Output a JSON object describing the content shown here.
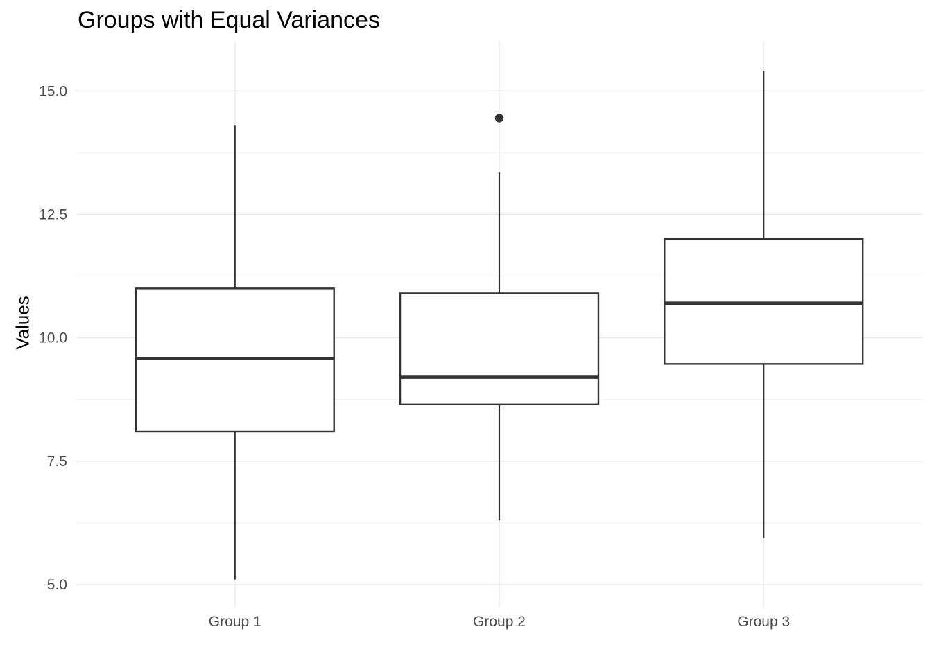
{
  "chart_data": {
    "type": "boxplot",
    "title": "Groups with Equal Variances",
    "xlabel": "",
    "ylabel": "Values",
    "legend": "none",
    "grid": "horizontal major+minor, vertical line at each category",
    "background": "#ffffff",
    "categories": [
      "Group 1",
      "Group 2",
      "Group 3"
    ],
    "series": [
      {
        "name": "Group 1",
        "whisker_low": 5.1,
        "q1": 8.1,
        "median": 9.58,
        "q3": 11.0,
        "whisker_high": 14.3,
        "outliers": []
      },
      {
        "name": "Group 2",
        "whisker_low": 6.3,
        "q1": 8.65,
        "median": 9.2,
        "q3": 10.9,
        "whisker_high": 13.35,
        "outliers": [
          14.45
        ]
      },
      {
        "name": "Group 3",
        "whisker_low": 5.95,
        "q1": 9.47,
        "median": 10.7,
        "q3": 12.0,
        "whisker_high": 15.4,
        "outliers": []
      }
    ],
    "y_ticks": [
      {
        "value": 5.0,
        "label": "5.0"
      },
      {
        "value": 7.5,
        "label": "7.5"
      },
      {
        "value": 10.0,
        "label": "10.0"
      },
      {
        "value": 12.5,
        "label": "12.5"
      },
      {
        "value": 15.0,
        "label": "15.0"
      }
    ],
    "y_minor_ticks": [
      6.25,
      8.75,
      11.25,
      13.75
    ],
    "ylim": [
      4.55,
      16.0
    ],
    "colors": {
      "box_stroke": "#333333",
      "box_fill": "#ffffff",
      "median": "#333333",
      "whisker": "#333333",
      "outlier": "#333333",
      "grid_major": "#e8e8e8",
      "grid_minor": "#f3f3f3",
      "axis_text": "#4d4d4d",
      "title_text": "#000000"
    }
  }
}
